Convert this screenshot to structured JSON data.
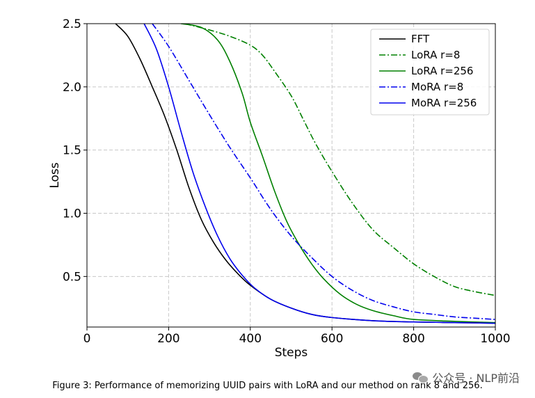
{
  "chart_data": {
    "type": "line",
    "xlabel": "Steps",
    "ylabel": "Loss",
    "xlim": [
      0,
      1000
    ],
    "ylim": [
      0.1,
      2.5
    ],
    "xticks": [
      0,
      200,
      400,
      600,
      800,
      1000
    ],
    "yticks": [
      0.5,
      1.0,
      1.5,
      2.0,
      2.5
    ],
    "xtick_labels": [
      "0",
      "200",
      "400",
      "600",
      "800",
      "1000"
    ],
    "ytick_labels": [
      "0.5",
      "1.0",
      "1.5",
      "2.0",
      "2.5"
    ],
    "grid": true,
    "legend_position": "top-right",
    "series": [
      {
        "name": "FFT",
        "color": "#000000",
        "style": "solid",
        "x": [
          70,
          100,
          130,
          160,
          190,
          220,
          250,
          280,
          310,
          340,
          370,
          400,
          450,
          500,
          550,
          600,
          700,
          800,
          900,
          1000
        ],
        "y": [
          2.5,
          2.4,
          2.22,
          2.0,
          1.77,
          1.5,
          1.2,
          0.95,
          0.77,
          0.63,
          0.52,
          0.43,
          0.32,
          0.25,
          0.2,
          0.175,
          0.15,
          0.14,
          0.135,
          0.13
        ]
      },
      {
        "name": "LoRA r=8",
        "color": "#008000",
        "style": "dashdot",
        "x": [
          240,
          300,
          350,
          400,
          430,
          460,
          500,
          530,
          560,
          600,
          650,
          700,
          750,
          800,
          850,
          900,
          950,
          1000
        ],
        "y": [
          2.5,
          2.45,
          2.4,
          2.33,
          2.25,
          2.12,
          1.93,
          1.74,
          1.55,
          1.33,
          1.08,
          0.87,
          0.73,
          0.6,
          0.5,
          0.42,
          0.38,
          0.35
        ]
      },
      {
        "name": "LoRA r=256",
        "color": "#008000",
        "style": "solid",
        "x": [
          230,
          280,
          320,
          350,
          380,
          400,
          430,
          460,
          490,
          520,
          550,
          580,
          620,
          660,
          700,
          750,
          800,
          900,
          1000
        ],
        "y": [
          2.5,
          2.47,
          2.37,
          2.2,
          1.95,
          1.72,
          1.45,
          1.17,
          0.93,
          0.75,
          0.6,
          0.48,
          0.36,
          0.28,
          0.23,
          0.19,
          0.16,
          0.145,
          0.135
        ]
      },
      {
        "name": "MoRA r=8",
        "color": "#0000ee",
        "style": "dashdot",
        "x": [
          160,
          200,
          250,
          300,
          350,
          400,
          450,
          500,
          550,
          600,
          650,
          700,
          750,
          800,
          850,
          900,
          950,
          1000
        ],
        "y": [
          2.5,
          2.32,
          2.05,
          1.78,
          1.52,
          1.28,
          1.03,
          0.82,
          0.65,
          0.5,
          0.39,
          0.31,
          0.26,
          0.22,
          0.2,
          0.18,
          0.17,
          0.16
        ]
      },
      {
        "name": "MoRA r=256",
        "color": "#0000ee",
        "style": "solid",
        "x": [
          140,
          170,
          200,
          230,
          260,
          290,
          320,
          350,
          380,
          410,
          450,
          500,
          550,
          600,
          700,
          800,
          900,
          1000
        ],
        "y": [
          2.5,
          2.3,
          2.0,
          1.65,
          1.32,
          1.05,
          0.82,
          0.64,
          0.51,
          0.41,
          0.32,
          0.25,
          0.2,
          0.175,
          0.15,
          0.14,
          0.135,
          0.13
        ]
      }
    ]
  },
  "caption": "Figure 3:  Performance of memorizing UUID pairs with LoRA and our method on rank 8 and 256.",
  "watermark": "公众号 · NLP前沿"
}
